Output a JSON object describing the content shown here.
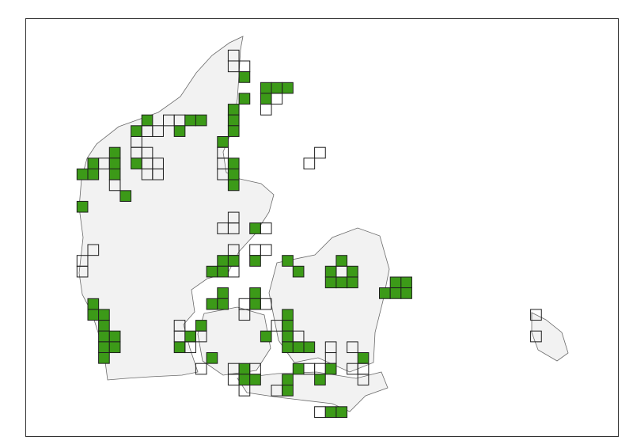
{
  "map": {
    "colors": {
      "land": "#f2f2f2",
      "coast": "#6a6a6a",
      "recorded": "#3c9a18",
      "surveyed": "#ffffff",
      "cell_border": "#1e1e1e"
    },
    "grid_cells": [
      {
        "col": 14,
        "row": 0,
        "status": "surveyed"
      },
      {
        "col": 14,
        "row": 1,
        "status": "surveyed"
      },
      {
        "col": 15,
        "row": 1,
        "status": "surveyed"
      },
      {
        "col": 15,
        "row": 2,
        "status": "recorded"
      },
      {
        "col": 17,
        "row": 3,
        "status": "recorded"
      },
      {
        "col": 18,
        "row": 3,
        "status": "recorded"
      },
      {
        "col": 19,
        "row": 3,
        "status": "recorded"
      },
      {
        "col": 17,
        "row": 4,
        "status": "recorded"
      },
      {
        "col": 18,
        "row": 4,
        "status": "surveyed"
      },
      {
        "col": 17,
        "row": 5,
        "status": "surveyed"
      },
      {
        "col": 15,
        "row": 4,
        "status": "recorded"
      },
      {
        "col": 14,
        "row": 5,
        "status": "recorded"
      },
      {
        "col": 14,
        "row": 6,
        "status": "recorded"
      },
      {
        "col": 14,
        "row": 7,
        "status": "recorded"
      },
      {
        "col": 13,
        "row": 8,
        "status": "recorded"
      },
      {
        "col": 13,
        "row": 9,
        "status": "surveyed"
      },
      {
        "col": 13,
        "row": 10,
        "status": "surveyed"
      },
      {
        "col": 14,
        "row": 10,
        "status": "recorded"
      },
      {
        "col": 13,
        "row": 11,
        "status": "surveyed"
      },
      {
        "col": 14,
        "row": 11,
        "status": "recorded"
      },
      {
        "col": 14,
        "row": 12,
        "status": "recorded"
      },
      {
        "col": 6,
        "row": 6,
        "status": "recorded"
      },
      {
        "col": 8,
        "row": 6,
        "status": "surveyed"
      },
      {
        "col": 9,
        "row": 6,
        "status": "surveyed"
      },
      {
        "col": 10,
        "row": 6,
        "status": "recorded"
      },
      {
        "col": 11,
        "row": 6,
        "status": "recorded"
      },
      {
        "col": 5,
        "row": 7,
        "status": "recorded"
      },
      {
        "col": 6,
        "row": 7,
        "status": "surveyed"
      },
      {
        "col": 7,
        "row": 7,
        "status": "surveyed"
      },
      {
        "col": 9,
        "row": 7,
        "status": "recorded"
      },
      {
        "col": 5,
        "row": 8,
        "status": "surveyed"
      },
      {
        "col": 5,
        "row": 9,
        "status": "surveyed"
      },
      {
        "col": 6,
        "row": 9,
        "status": "surveyed"
      },
      {
        "col": 5,
        "row": 10,
        "status": "recorded"
      },
      {
        "col": 6,
        "row": 10,
        "status": "surveyed"
      },
      {
        "col": 7,
        "row": 10,
        "status": "surveyed"
      },
      {
        "col": 6,
        "row": 11,
        "status": "surveyed"
      },
      {
        "col": 7,
        "row": 11,
        "status": "surveyed"
      },
      {
        "col": 3,
        "row": 9,
        "status": "recorded"
      },
      {
        "col": 3,
        "row": 10,
        "status": "recorded"
      },
      {
        "col": 3,
        "row": 11,
        "status": "recorded"
      },
      {
        "col": 3,
        "row": 12,
        "status": "surveyed"
      },
      {
        "col": 4,
        "row": 13,
        "status": "recorded"
      },
      {
        "col": 1,
        "row": 10,
        "status": "recorded"
      },
      {
        "col": 2,
        "row": 10,
        "status": "surveyed"
      },
      {
        "col": 0,
        "row": 11,
        "status": "recorded"
      },
      {
        "col": 1,
        "row": 11,
        "status": "recorded"
      },
      {
        "col": 0,
        "row": 14,
        "status": "recorded"
      },
      {
        "col": 22,
        "row": 9,
        "status": "surveyed"
      },
      {
        "col": 21,
        "row": 10,
        "status": "surveyed"
      },
      {
        "col": 14,
        "row": 15,
        "status": "surveyed"
      },
      {
        "col": 13,
        "row": 16,
        "status": "surveyed"
      },
      {
        "col": 14,
        "row": 16,
        "status": "surveyed"
      },
      {
        "col": 16,
        "row": 16,
        "status": "recorded"
      },
      {
        "col": 17,
        "row": 16,
        "status": "surveyed"
      },
      {
        "col": 14,
        "row": 18,
        "status": "surveyed"
      },
      {
        "col": 16,
        "row": 18,
        "status": "surveyed"
      },
      {
        "col": 17,
        "row": 18,
        "status": "surveyed"
      },
      {
        "col": 13,
        "row": 19,
        "status": "recorded"
      },
      {
        "col": 14,
        "row": 19,
        "status": "recorded"
      },
      {
        "col": 16,
        "row": 19,
        "status": "recorded"
      },
      {
        "col": 12,
        "row": 20,
        "status": "recorded"
      },
      {
        "col": 13,
        "row": 20,
        "status": "recorded"
      },
      {
        "col": 14,
        "row": 20,
        "status": "surveyed"
      },
      {
        "col": 19,
        "row": 19,
        "status": "recorded"
      },
      {
        "col": 20,
        "row": 20,
        "status": "recorded"
      },
      {
        "col": 24,
        "row": 19,
        "status": "recorded"
      },
      {
        "col": 23,
        "row": 20,
        "status": "recorded"
      },
      {
        "col": 24,
        "row": 20,
        "status": "surveyed"
      },
      {
        "col": 25,
        "row": 20,
        "status": "recorded"
      },
      {
        "col": 23,
        "row": 21,
        "status": "recorded"
      },
      {
        "col": 24,
        "row": 21,
        "status": "recorded"
      },
      {
        "col": 25,
        "row": 21,
        "status": "recorded"
      },
      {
        "col": 29,
        "row": 21,
        "status": "recorded"
      },
      {
        "col": 30,
        "row": 21,
        "status": "recorded"
      },
      {
        "col": 28,
        "row": 22,
        "status": "recorded"
      },
      {
        "col": 29,
        "row": 22,
        "status": "recorded"
      },
      {
        "col": 30,
        "row": 22,
        "status": "recorded"
      },
      {
        "col": 13,
        "row": 22,
        "status": "recorded"
      },
      {
        "col": 12,
        "row": 23,
        "status": "recorded"
      },
      {
        "col": 13,
        "row": 23,
        "status": "recorded"
      },
      {
        "col": 16,
        "row": 22,
        "status": "recorded"
      },
      {
        "col": 16,
        "row": 23,
        "status": "recorded"
      },
      {
        "col": 15,
        "row": 23,
        "status": "surveyed"
      },
      {
        "col": 17,
        "row": 23,
        "status": "surveyed"
      },
      {
        "col": 15,
        "row": 24,
        "status": "surveyed"
      },
      {
        "col": 0,
        "row": 19,
        "status": "surveyed"
      },
      {
        "col": 0,
        "row": 20,
        "status": "surveyed"
      },
      {
        "col": 1,
        "row": 18,
        "status": "surveyed"
      },
      {
        "col": 1,
        "row": 23,
        "status": "recorded"
      },
      {
        "col": 1,
        "row": 24,
        "status": "recorded"
      },
      {
        "col": 2,
        "row": 24,
        "status": "recorded"
      },
      {
        "col": 2,
        "row": 25,
        "status": "recorded"
      },
      {
        "col": 2,
        "row": 26,
        "status": "recorded"
      },
      {
        "col": 3,
        "row": 26,
        "status": "recorded"
      },
      {
        "col": 2,
        "row": 27,
        "status": "recorded"
      },
      {
        "col": 3,
        "row": 27,
        "status": "recorded"
      },
      {
        "col": 2,
        "row": 28,
        "status": "recorded"
      },
      {
        "col": 9,
        "row": 25,
        "status": "surveyed"
      },
      {
        "col": 11,
        "row": 25,
        "status": "recorded"
      },
      {
        "col": 9,
        "row": 26,
        "status": "surveyed"
      },
      {
        "col": 10,
        "row": 26,
        "status": "recorded"
      },
      {
        "col": 11,
        "row": 26,
        "status": "surveyed"
      },
      {
        "col": 9,
        "row": 27,
        "status": "recorded"
      },
      {
        "col": 10,
        "row": 27,
        "status": "surveyed"
      },
      {
        "col": 12,
        "row": 28,
        "status": "recorded"
      },
      {
        "col": 11,
        "row": 29,
        "status": "surveyed"
      },
      {
        "col": 14,
        "row": 29,
        "status": "surveyed"
      },
      {
        "col": 15,
        "row": 29,
        "status": "recorded"
      },
      {
        "col": 16,
        "row": 29,
        "status": "surveyed"
      },
      {
        "col": 14,
        "row": 30,
        "status": "surveyed"
      },
      {
        "col": 15,
        "row": 30,
        "status": "recorded"
      },
      {
        "col": 16,
        "row": 30,
        "status": "recorded"
      },
      {
        "col": 15,
        "row": 31,
        "status": "surveyed"
      },
      {
        "col": 17,
        "row": 26,
        "status": "recorded"
      },
      {
        "col": 18,
        "row": 25,
        "status": "surveyed"
      },
      {
        "col": 19,
        "row": 24,
        "status": "recorded"
      },
      {
        "col": 19,
        "row": 25,
        "status": "recorded"
      },
      {
        "col": 19,
        "row": 26,
        "status": "recorded"
      },
      {
        "col": 19,
        "row": 27,
        "status": "recorded"
      },
      {
        "col": 20,
        "row": 26,
        "status": "surveyed"
      },
      {
        "col": 20,
        "row": 27,
        "status": "recorded"
      },
      {
        "col": 21,
        "row": 27,
        "status": "recorded"
      },
      {
        "col": 20,
        "row": 29,
        "status": "recorded"
      },
      {
        "col": 21,
        "row": 29,
        "status": "surveyed"
      },
      {
        "col": 19,
        "row": 30,
        "status": "recorded"
      },
      {
        "col": 19,
        "row": 31,
        "status": "recorded"
      },
      {
        "col": 18,
        "row": 31,
        "status": "surveyed"
      },
      {
        "col": 22,
        "row": 29,
        "status": "surveyed"
      },
      {
        "col": 22,
        "row": 30,
        "status": "recorded"
      },
      {
        "col": 23,
        "row": 27,
        "status": "surveyed"
      },
      {
        "col": 23,
        "row": 28,
        "status": "surveyed"
      },
      {
        "col": 23,
        "row": 29,
        "status": "recorded"
      },
      {
        "col": 25,
        "row": 27,
        "status": "surveyed"
      },
      {
        "col": 26,
        "row": 28,
        "status": "recorded"
      },
      {
        "col": 25,
        "row": 29,
        "status": "surveyed"
      },
      {
        "col": 26,
        "row": 29,
        "status": "surveyed"
      },
      {
        "col": 26,
        "row": 30,
        "status": "surveyed"
      },
      {
        "col": 22,
        "row": 33,
        "status": "surveyed"
      },
      {
        "col": 23,
        "row": 33,
        "status": "recorded"
      },
      {
        "col": 24,
        "row": 33,
        "status": "recorded"
      },
      {
        "col": 42,
        "row": 24,
        "status": "surveyed"
      },
      {
        "col": 42,
        "row": 26,
        "status": "surveyed"
      }
    ]
  }
}
